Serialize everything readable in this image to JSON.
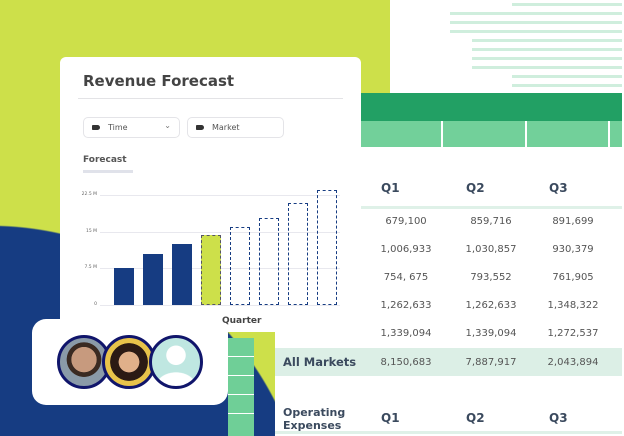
{
  "card": {
    "title": "Revenue Forecast",
    "filters": [
      {
        "label": "Time",
        "icon": "tag-icon",
        "dropdown": true
      },
      {
        "label": "Market",
        "icon": "tag-icon"
      }
    ],
    "section": "Forecast"
  },
  "chart_data": {
    "type": "bar",
    "xlabel": "Quarter",
    "ylabel": "",
    "yticks": [
      "0",
      "7.5 M",
      "15 M",
      "22.5 M"
    ],
    "ylim": [
      0,
      22.5
    ],
    "values": [
      7.6,
      10.4,
      12.5,
      14.3,
      15.9,
      17.8,
      20.8,
      23.5
    ],
    "styles": [
      "actual",
      "actual",
      "actual",
      "current",
      "forecast",
      "forecast",
      "forecast",
      "forecast"
    ],
    "colors": {
      "actual": "#163c82",
      "current": "#cde04a",
      "forecast_border": "#163c82"
    }
  },
  "table": {
    "headers": [
      "Q1",
      "Q2",
      "Q3"
    ],
    "rows": [
      [
        "679,100",
        "859,716",
        "891,699"
      ],
      [
        "1,006,933",
        "1,030,857",
        "930,379"
      ],
      [
        "754, 675",
        "793,552",
        "761,905"
      ],
      [
        "1,262,633",
        "1,262,633",
        "1,348,322"
      ],
      [
        "1,339,094",
        "1,339,094",
        "1,272,537"
      ]
    ],
    "total": {
      "label": "All Markets",
      "values": [
        "8,150,683",
        "7,887,917",
        "2,043,894"
      ]
    },
    "section2": {
      "label": "Operating Expenses",
      "headers": [
        "Q1",
        "Q2",
        "Q3"
      ]
    }
  },
  "avatars": [
    {
      "name": "user-avatar-1"
    },
    {
      "name": "user-avatar-2"
    },
    {
      "name": "user-avatar-placeholder"
    }
  ],
  "colors": {
    "lime": "#cde04a",
    "navy": "#163c82",
    "green": "#22a064",
    "light_green": "#72d09a"
  }
}
